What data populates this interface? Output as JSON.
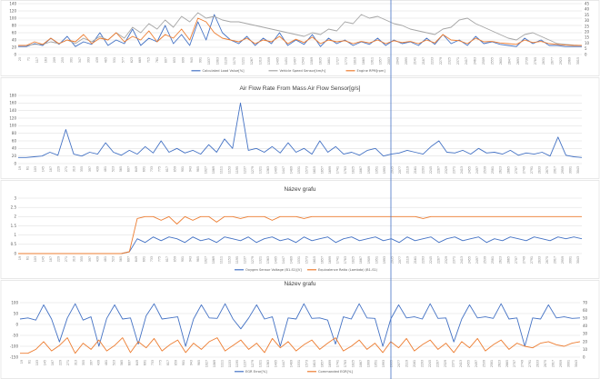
{
  "colors": {
    "blue": "#4472c4",
    "orange": "#ed7d31",
    "gray": "#a5a5a5",
    "cursor": "#4472c4"
  },
  "chart_data": [
    {
      "type": "line",
      "title": "",
      "x_tick_labels": [
        "25",
        "71",
        "117",
        "163",
        "209",
        "255",
        "301",
        "347",
        "393",
        "439",
        "485",
        "531",
        "577",
        "623",
        "669",
        "715",
        "761",
        "807",
        "853",
        "899",
        "945",
        "991",
        "1037",
        "1083",
        "1129",
        "1175",
        "1221",
        "1267",
        "1313",
        "1359",
        "1405",
        "1451",
        "1497",
        "1543",
        "1589",
        "1635",
        "1681",
        "1727",
        "1773",
        "1819",
        "1865",
        "1911",
        "1957",
        "2003",
        "2049",
        "2095",
        "2141",
        "2187",
        "2233",
        "2279",
        "2325",
        "2371",
        "2417",
        "2463",
        "2509",
        "2555",
        "2601",
        "2647",
        "2693",
        "2739",
        "2785",
        "2831",
        "2877",
        "2923",
        "2969",
        "3015"
      ],
      "y_ticks": [
        0,
        20,
        40,
        60,
        80,
        100,
        120,
        140
      ],
      "y2_ticks": [
        0,
        5,
        10,
        15,
        20,
        25,
        30,
        35,
        40,
        45
      ],
      "ylim": [
        0,
        140
      ],
      "y2lim": [
        0,
        45
      ],
      "series": [
        {
          "name": "Calculated Load Value[%]",
          "color": "blue",
          "axis": "y",
          "values": [
            22,
            22,
            30,
            25,
            45,
            28,
            50,
            22,
            35,
            28,
            60,
            25,
            40,
            30,
            70,
            25,
            45,
            35,
            80,
            30,
            55,
            25,
            90,
            40,
            110,
            60,
            40,
            30,
            50,
            25,
            45,
            30,
            60,
            25,
            40,
            28,
            55,
            22,
            45,
            30,
            40,
            25,
            35,
            28,
            45,
            25,
            40,
            30,
            35,
            25,
            45,
            28,
            55,
            30,
            40,
            25,
            50,
            30,
            35,
            28,
            25,
            22,
            45,
            30,
            40,
            25,
            25,
            22,
            22,
            22
          ]
        },
        {
          "name": "Vehicle Speed Sensor[km/h]",
          "color": "gray",
          "axis": "y",
          "values": [
            25,
            25,
            28,
            28,
            35,
            30,
            40,
            30,
            45,
            35,
            50,
            40,
            60,
            45,
            75,
            60,
            85,
            70,
            95,
            75,
            105,
            90,
            115,
            100,
            105,
            95,
            90,
            90,
            85,
            80,
            75,
            70,
            65,
            60,
            55,
            50,
            60,
            55,
            70,
            65,
            90,
            85,
            110,
            100,
            105,
            95,
            85,
            80,
            70,
            65,
            60,
            55,
            70,
            75,
            95,
            100,
            85,
            75,
            65,
            55,
            45,
            40,
            55,
            60,
            50,
            40,
            30,
            28,
            26,
            25
          ]
        },
        {
          "name": "Engine RPM[rpm]",
          "color": "orange",
          "axis": "y",
          "values": [
            25,
            25,
            35,
            28,
            45,
            30,
            40,
            35,
            55,
            30,
            45,
            40,
            60,
            35,
            50,
            40,
            65,
            35,
            55,
            45,
            70,
            40,
            100,
            90,
            60,
            45,
            40,
            35,
            45,
            30,
            40,
            35,
            50,
            30,
            42,
            33,
            48,
            30,
            40,
            35,
            38,
            30,
            36,
            32,
            40,
            30,
            38,
            33,
            36,
            30,
            40,
            32,
            55,
            40,
            38,
            30,
            45,
            35,
            36,
            32,
            30,
            28,
            40,
            33,
            36,
            30,
            28,
            26,
            25,
            25
          ]
        }
      ]
    },
    {
      "type": "line",
      "title": "Air Flow Rate From Mass Air Flow Sensor[g/s]",
      "x_tick_labels": [
        "19",
        "61",
        "103",
        "145",
        "187",
        "229",
        "271",
        "313",
        "355",
        "397",
        "439",
        "481",
        "523",
        "565",
        "607",
        "649",
        "691",
        "733",
        "775",
        "817",
        "859",
        "901",
        "943",
        "985",
        "1027",
        "1069",
        "1111",
        "1153",
        "1195",
        "1237",
        "1279",
        "1321",
        "1363",
        "1405",
        "1447",
        "1489",
        "1531",
        "1573",
        "1615",
        "1657",
        "1699",
        "1741",
        "1783",
        "1825",
        "1867",
        "1909",
        "1951",
        "1993",
        "2035",
        "2077",
        "2119",
        "2161",
        "2203",
        "2245",
        "2287",
        "2329",
        "2371",
        "2413",
        "2455",
        "2497",
        "2539",
        "2581",
        "2623",
        "2665",
        "2707",
        "2749",
        "2791",
        "2833",
        "2875",
        "2917",
        "2959",
        "3001",
        "3043"
      ],
      "y_ticks": [
        0,
        20,
        40,
        60,
        80,
        100,
        120,
        140,
        160,
        180
      ],
      "ylim": [
        0,
        180
      ],
      "series": [
        {
          "name": "",
          "color": "blue",
          "values": [
            16,
            16,
            18,
            20,
            30,
            22,
            90,
            25,
            20,
            30,
            25,
            55,
            30,
            22,
            35,
            25,
            45,
            28,
            60,
            30,
            40,
            28,
            35,
            25,
            50,
            30,
            65,
            40,
            160,
            35,
            40,
            30,
            45,
            28,
            55,
            30,
            40,
            25,
            60,
            30,
            45,
            25,
            30,
            22,
            35,
            40,
            20,
            25,
            28,
            35,
            30,
            25,
            45,
            60,
            30,
            28,
            35,
            25,
            40,
            28,
            30,
            25,
            35,
            22,
            28,
            25,
            30,
            20,
            70,
            22,
            18,
            16
          ]
        }
      ]
    },
    {
      "type": "line",
      "title": "Název grafu",
      "x_tick_labels": [
        "19",
        "61",
        "103",
        "145",
        "187",
        "229",
        "271",
        "313",
        "355",
        "397",
        "439",
        "481",
        "523",
        "565",
        "607",
        "649",
        "691",
        "733",
        "775",
        "817",
        "859",
        "901",
        "943",
        "985",
        "1027",
        "1069",
        "1111",
        "1153",
        "1195",
        "1237",
        "1279",
        "1321",
        "1363",
        "1405",
        "1447",
        "1489",
        "1531",
        "1573",
        "1615",
        "1657",
        "1699",
        "1741",
        "1783",
        "1825",
        "1867",
        "1909",
        "1951",
        "1993",
        "2035",
        "2077",
        "2119",
        "2161",
        "2203",
        "2245",
        "2287",
        "2329",
        "2371",
        "2413",
        "2455",
        "2497",
        "2539",
        "2581",
        "2623",
        "2665",
        "2707",
        "2749",
        "2791",
        "2833",
        "2875",
        "2917",
        "2959",
        "3001",
        "3043"
      ],
      "y_ticks": [
        0,
        0.5,
        1,
        1.5,
        2,
        2.5,
        3
      ],
      "ylim": [
        0,
        3
      ],
      "series": [
        {
          "name": "Oxygen Sensor Voltage (B1-S1)[V]",
          "color": "blue",
          "values": [
            0,
            0,
            0,
            0,
            0,
            0,
            0,
            0,
            0,
            0,
            0,
            0,
            0,
            0,
            0.1,
            0.8,
            0.6,
            0.9,
            0.7,
            0.9,
            0.8,
            0.6,
            0.9,
            0.7,
            0.8,
            0.6,
            0.9,
            0.8,
            0.7,
            0.9,
            0.6,
            0.8,
            0.9,
            0.7,
            0.8,
            0.6,
            0.9,
            0.7,
            0.8,
            0.9,
            0.6,
            0.8,
            0.9,
            0.7,
            0.8,
            0.9,
            0.7,
            0.8,
            0.6,
            0.9,
            0.7,
            0.8,
            0.9,
            0.6,
            0.8,
            0.9,
            0.7,
            0.8,
            0.9,
            0.6,
            0.8,
            0.7,
            0.9,
            0.8,
            0.7,
            0.9,
            0.8,
            0.7,
            0.9,
            0.8,
            0.9,
            0.8
          ]
        },
        {
          "name": "Equivalence Ratio (Lambda) (B1-S1)",
          "color": "orange",
          "values": [
            0,
            0,
            0,
            0,
            0,
            0,
            0,
            0,
            0,
            0,
            0,
            0,
            0,
            0,
            0.1,
            1.9,
            2,
            2,
            1.8,
            2,
            1.6,
            2,
            1.8,
            2,
            2,
            1.7,
            2,
            2,
            1.9,
            2,
            2,
            2,
            1.8,
            2,
            2,
            2,
            1.9,
            2,
            2,
            2,
            2,
            2,
            2,
            2,
            2,
            2,
            2,
            2,
            2,
            2,
            2,
            1.9,
            2,
            2,
            2,
            2,
            2,
            2,
            2,
            2,
            2,
            2,
            2,
            2,
            2,
            2,
            2,
            2,
            2,
            2,
            2,
            2
          ]
        }
      ]
    },
    {
      "type": "line",
      "title": "Název grafu",
      "x_tick_labels": [
        "19",
        "61",
        "103",
        "145",
        "187",
        "229",
        "271",
        "313",
        "355",
        "397",
        "439",
        "481",
        "523",
        "565",
        "607",
        "649",
        "691",
        "733",
        "775",
        "817",
        "859",
        "901",
        "943",
        "985",
        "1027",
        "1069",
        "1111",
        "1153",
        "1195",
        "1237",
        "1279",
        "1321",
        "1363",
        "1405",
        "1447",
        "1489",
        "1531",
        "1573",
        "1615",
        "1657",
        "1699",
        "1741",
        "1783",
        "1825",
        "1867",
        "1909",
        "1951",
        "1993",
        "2035",
        "2077",
        "2119",
        "2161",
        "2203",
        "2245",
        "2287",
        "2329",
        "2371",
        "2413",
        "2455",
        "2497",
        "2539",
        "2581",
        "2623",
        "2665",
        "2707",
        "2749",
        "2791",
        "2833",
        "2875",
        "2917",
        "2959",
        "3001",
        "3043"
      ],
      "y_ticks": [
        -150,
        -100,
        -50,
        0,
        50,
        100
      ],
      "y2_ticks": [
        0,
        10,
        20,
        30,
        40,
        50,
        60,
        70
      ],
      "ylim": [
        -150,
        100
      ],
      "y2lim": [
        0,
        70
      ],
      "series": [
        {
          "name": "EGR Error[%]",
          "color": "blue",
          "axis": "y",
          "values": [
            25,
            30,
            20,
            90,
            25,
            -80,
            30,
            95,
            20,
            35,
            -100,
            28,
            90,
            25,
            30,
            -90,
            40,
            95,
            25,
            30,
            35,
            -100,
            25,
            90,
            30,
            28,
            95,
            25,
            -20,
            30,
            90,
            25,
            35,
            -100,
            30,
            25,
            95,
            28,
            30,
            20,
            -90,
            35,
            25,
            95,
            30,
            28,
            -100,
            25,
            90,
            30,
            35,
            25,
            95,
            28,
            30,
            -80,
            25,
            90,
            30,
            35,
            28,
            95,
            25,
            30,
            -100,
            30,
            25,
            90,
            30,
            35,
            28,
            30
          ]
        },
        {
          "name": "Commanded EGR[%]",
          "color": "orange",
          "axis": "y2",
          "values": [
            5,
            5,
            10,
            20,
            8,
            15,
            25,
            5,
            18,
            10,
            22,
            8,
            15,
            25,
            6,
            20,
            12,
            24,
            8,
            16,
            22,
            6,
            18,
            10,
            20,
            25,
            8,
            15,
            22,
            10,
            18,
            6,
            24,
            12,
            20,
            8,
            16,
            22,
            10,
            18,
            25,
            8,
            14,
            22,
            10,
            18,
            6,
            20,
            12,
            24,
            8,
            16,
            22,
            10,
            18,
            6,
            20,
            12,
            24,
            8,
            16,
            22,
            10,
            18,
            14,
            12,
            18,
            20,
            16,
            14,
            18,
            20
          ]
        }
      ]
    }
  ]
}
